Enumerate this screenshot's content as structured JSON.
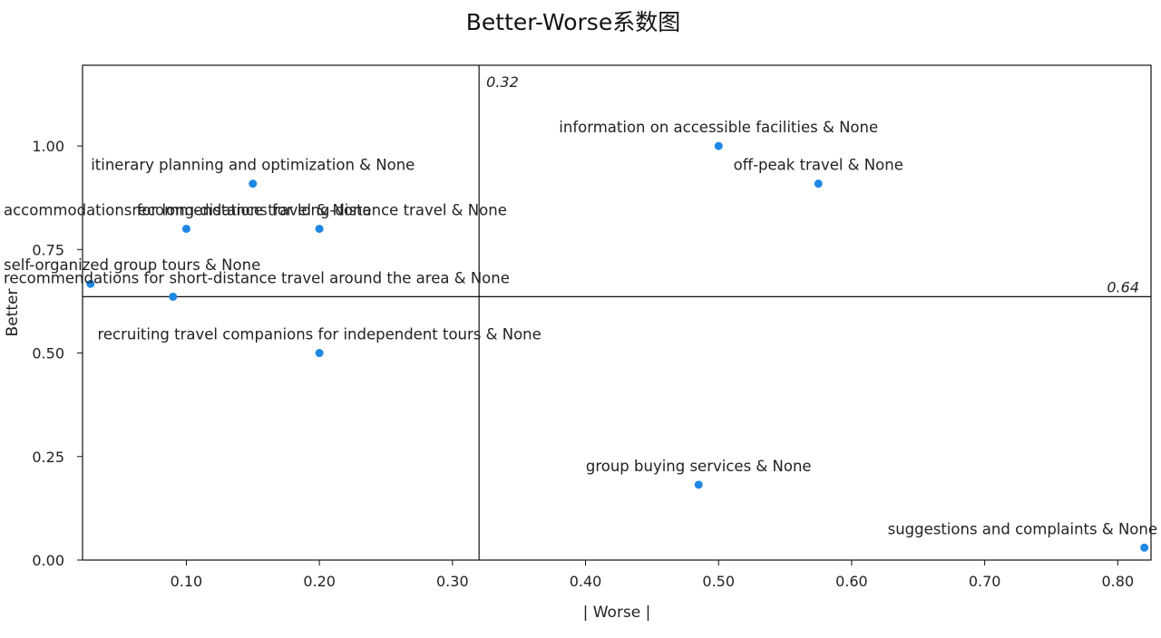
{
  "chart_data": {
    "type": "scatter",
    "title": "Better-Worse系数图",
    "xlabel": "| Worse |",
    "ylabel": "Better",
    "xlim": [
      0.022,
      0.825
    ],
    "ylim": [
      0.0,
      1.195
    ],
    "xticks": [
      0.1,
      0.2,
      0.3,
      0.4,
      0.5,
      0.6,
      0.7,
      0.8
    ],
    "xtick_labels": [
      "0.10",
      "0.20",
      "0.30",
      "0.40",
      "0.50",
      "0.60",
      "0.70",
      "0.80"
    ],
    "yticks": [
      0.0,
      0.25,
      0.5,
      0.75,
      1.0
    ],
    "ytick_labels": [
      "0.00",
      "0.25",
      "0.50",
      "0.75",
      "1.00"
    ],
    "reference_lines": {
      "vertical": {
        "x": 0.32,
        "label": "0.32"
      },
      "horizontal": {
        "y": 0.636,
        "label": "0.64"
      }
    },
    "grid": false,
    "point_color": "#1f88e5",
    "points": [
      {
        "label": "itinerary planning and optimization & None",
        "x": 0.15,
        "y": 0.909
      },
      {
        "label": "information on accessible facilities & None",
        "x": 0.5,
        "y": 1.0
      },
      {
        "label": "off-peak travel & None",
        "x": 0.575,
        "y": 0.909
      },
      {
        "label": "accommodations for long-distance travel & None",
        "x": 0.1,
        "y": 0.8
      },
      {
        "label": "recommendations for long-distance travel & None",
        "x": 0.2,
        "y": 0.8
      },
      {
        "label": "self-organized group tours & None",
        "x": 0.028,
        "y": 0.667
      },
      {
        "label": "recommendations for short-distance travel around the area & None",
        "x": 0.09,
        "y": 0.636
      },
      {
        "label": "recruiting travel companions for independent tours & None",
        "x": 0.2,
        "y": 0.5
      },
      {
        "label": "group buying services & None",
        "x": 0.485,
        "y": 0.182
      },
      {
        "label": "suggestions and complaints & None",
        "x": 0.82,
        "y": 0.03
      }
    ]
  }
}
